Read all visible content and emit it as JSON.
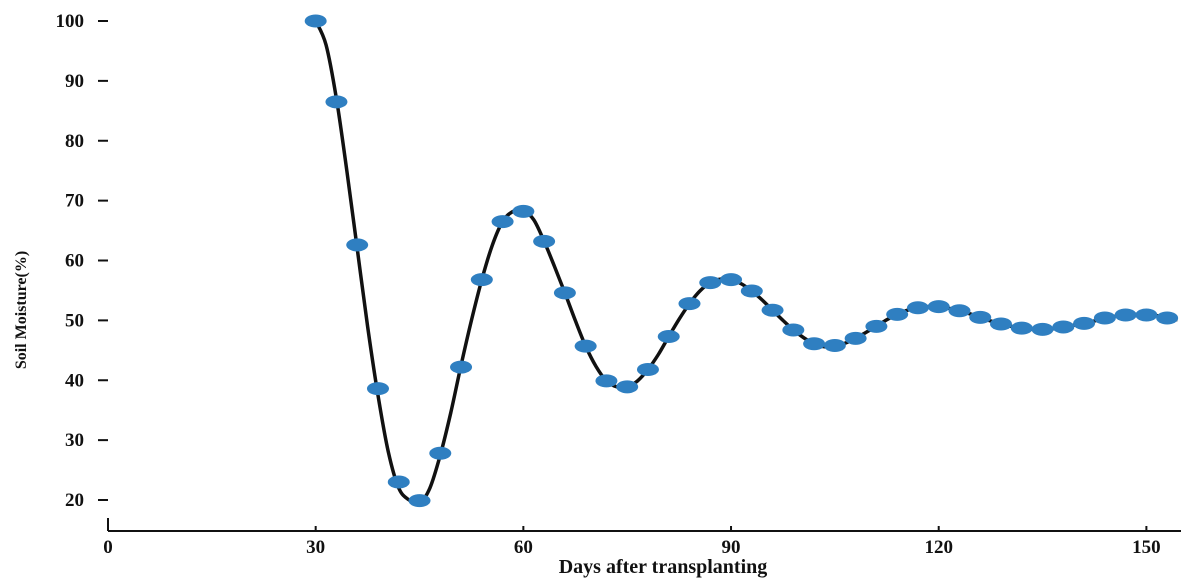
{
  "chart_data": {
    "type": "scatter",
    "title": "",
    "xlabel": "Days after transplanting",
    "ylabel": "Soil Moisture(%)",
    "xlim": [
      0,
      155
    ],
    "ylim": [
      16,
      100
    ],
    "x_ticks": [
      0,
      30,
      60,
      90,
      120,
      150
    ],
    "y_ticks": [
      20,
      30,
      40,
      50,
      60,
      70,
      80,
      90,
      100
    ],
    "grid": false,
    "legend": "none",
    "colors": {
      "points": "#2f7fc1",
      "curve": "#111111",
      "axis": "#111111"
    },
    "series": [
      {
        "kind": "points",
        "x": [
          30,
          33,
          36,
          39,
          42,
          45,
          48,
          51,
          54,
          57,
          60,
          63,
          66,
          69,
          72,
          75,
          78,
          81,
          84,
          87,
          90,
          93,
          96,
          99,
          102,
          105,
          108,
          111,
          114,
          117,
          120,
          123,
          126,
          129,
          132,
          135,
          138,
          141,
          144,
          147,
          150,
          153
        ],
        "y": [
          100,
          86.5,
          62.6,
          38.6,
          23.0,
          19.9,
          27.8,
          42.2,
          56.8,
          66.5,
          68.2,
          63.2,
          54.6,
          45.7,
          39.9,
          38.9,
          41.8,
          47.3,
          52.8,
          56.3,
          56.8,
          54.9,
          51.7,
          48.4,
          46.1,
          45.8,
          47.0,
          49.0,
          51.0,
          52.1,
          52.3,
          51.6,
          50.5,
          49.4,
          48.7,
          48.5,
          48.9,
          49.5,
          50.4,
          50.9,
          50.9,
          50.4
        ]
      },
      {
        "kind": "fitted-curve",
        "x": [
          30,
          31.5,
          33,
          34.5,
          36,
          37.5,
          39,
          40.5,
          42,
          43.5,
          45,
          46.5,
          48,
          49.5,
          51,
          52.5,
          54,
          55.5,
          57,
          58.5,
          60,
          61.5,
          63,
          64.5,
          66,
          67.5,
          69,
          70.5,
          72,
          73.5,
          75,
          76.5,
          78,
          79.5,
          81,
          82.5,
          84,
          85.5,
          87,
          88.5,
          90,
          91.5,
          93,
          94.5,
          96,
          97.5,
          99,
          100.5,
          102,
          103.5,
          105,
          106.5,
          108,
          109.5,
          111,
          112.5,
          114,
          115.5,
          117,
          118.5,
          120,
          121.5,
          123,
          124.5,
          126,
          127.5,
          129,
          130.5,
          132,
          133.5,
          135,
          136.5,
          138,
          139.5,
          141,
          142.5,
          144,
          145.5,
          147,
          148.5,
          150,
          151.5,
          153,
          154.5
        ],
        "y": [
          100,
          96,
          87,
          75,
          62,
          49,
          37.5,
          28,
          22,
          20,
          19.5,
          22,
          27.5,
          34.5,
          42.5,
          50,
          56.8,
          62.5,
          66.5,
          68.2,
          68.3,
          66.8,
          63.2,
          59,
          54.6,
          50,
          45.7,
          42.3,
          39.9,
          38.9,
          38.9,
          39.9,
          41.8,
          44.3,
          47.3,
          50.2,
          52.8,
          54.9,
          56.3,
          56.9,
          56.8,
          56.1,
          54.9,
          53.4,
          51.7,
          50,
          48.4,
          47.1,
          46.1,
          45.6,
          45.8,
          46.2,
          47,
          48,
          49,
          50.1,
          51,
          51.7,
          52.1,
          52.3,
          52.3,
          52,
          51.6,
          51.1,
          50.5,
          49.9,
          49.4,
          49,
          48.7,
          48.5,
          48.5,
          48.6,
          48.9,
          49.2,
          49.5,
          49.9,
          50.4,
          50.7,
          50.9,
          51,
          50.9,
          50.8,
          50.4,
          50.1
        ]
      }
    ]
  }
}
